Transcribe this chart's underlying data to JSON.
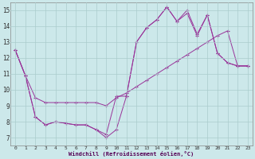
{
  "xlabel": "Windchill (Refroidissement éolien,°C)",
  "background_color": "#cce8ea",
  "grid_color": "#aacccc",
  "line_color": "#993399",
  "xlim": [
    -0.5,
    23.5
  ],
  "ylim": [
    6.5,
    15.5
  ],
  "yticks": [
    7,
    8,
    9,
    10,
    11,
    12,
    13,
    14,
    15
  ],
  "xticks": [
    0,
    1,
    2,
    3,
    4,
    5,
    6,
    7,
    8,
    9,
    10,
    11,
    12,
    13,
    14,
    15,
    16,
    17,
    18,
    19,
    20,
    21,
    22,
    23
  ],
  "lines": [
    {
      "x": [
        0,
        1,
        2,
        3,
        4,
        5,
        6,
        7,
        8,
        9,
        10,
        11,
        12,
        13,
        14,
        15,
        16,
        17,
        18,
        19,
        20,
        21,
        22,
        23
      ],
      "y": [
        12.5,
        10.9,
        9.5,
        9.2,
        9.2,
        9.2,
        9.2,
        9.2,
        9.2,
        9.0,
        9.5,
        9.8,
        10.2,
        10.6,
        11.0,
        11.4,
        11.8,
        12.2,
        12.6,
        13.0,
        13.4,
        13.7,
        11.5,
        11.5
      ]
    },
    {
      "x": [
        0,
        1,
        2,
        3,
        4,
        5,
        6,
        7,
        8,
        9,
        10,
        11,
        12,
        13,
        14,
        15,
        16,
        17,
        18,
        19,
        20,
        21,
        22,
        23
      ],
      "y": [
        12.5,
        10.9,
        8.3,
        7.8,
        8.0,
        7.9,
        7.8,
        7.8,
        7.5,
        7.0,
        7.5,
        9.6,
        13.0,
        13.9,
        14.4,
        15.2,
        14.3,
        14.8,
        13.4,
        14.7,
        12.3,
        11.7,
        11.5,
        11.5
      ]
    },
    {
      "x": [
        0,
        1,
        2,
        3,
        4,
        5,
        6,
        7,
        8,
        9,
        10,
        11,
        12,
        13,
        14,
        15,
        16,
        17,
        18,
        19,
        20,
        21,
        22,
        23
      ],
      "y": [
        12.5,
        10.9,
        8.3,
        7.8,
        8.0,
        7.9,
        7.8,
        7.8,
        7.5,
        7.2,
        9.6,
        9.6,
        13.0,
        13.9,
        14.4,
        15.2,
        14.3,
        15.0,
        13.5,
        14.7,
        12.3,
        11.7,
        11.5,
        11.5
      ]
    }
  ]
}
